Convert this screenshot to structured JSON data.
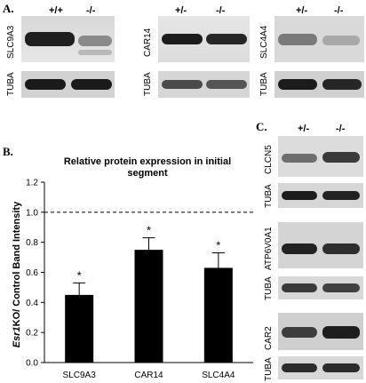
{
  "panelA": {
    "letter": "A.",
    "blots": [
      {
        "genotypes": [
          "+/+",
          "-/-"
        ],
        "target": "SLC9A3",
        "control": "TUBA"
      },
      {
        "genotypes": [
          "+/-",
          "-/-"
        ],
        "target": "CAR14",
        "control": "TUBA"
      },
      {
        "genotypes": [
          "+/-",
          "-/-"
        ],
        "target": "SLC4A4",
        "control": "TUBA"
      }
    ]
  },
  "panelB": {
    "letter": "B."
  },
  "panelC": {
    "letter": "C.",
    "genotypes": [
      "+/-",
      "-/-"
    ],
    "blots": [
      {
        "target": "CLCN5",
        "control": "TUBA"
      },
      {
        "target": "ATP6V0A1",
        "control": "TUBA"
      },
      {
        "target": "CAR2",
        "control": "TUBA"
      }
    ]
  },
  "chart_data": {
    "type": "bar",
    "title": "Relative protein expression in initial segment",
    "ylabel_italic": "Esr1",
    "ylabel_rest": "KO/ Control Band Intensity",
    "categories": [
      "SLC9A3",
      "CAR14",
      "SLC4A4"
    ],
    "values": [
      0.45,
      0.75,
      0.63
    ],
    "errors": [
      0.08,
      0.08,
      0.1
    ],
    "significance": [
      "*",
      "*",
      "*"
    ],
    "ylim": [
      0,
      1.2
    ],
    "yticks": [
      "0.0",
      "0.2",
      "0.4",
      "0.6",
      "0.8",
      "1.0",
      "1.2"
    ],
    "reference_line": 1.0,
    "bar_color": "#000000"
  }
}
